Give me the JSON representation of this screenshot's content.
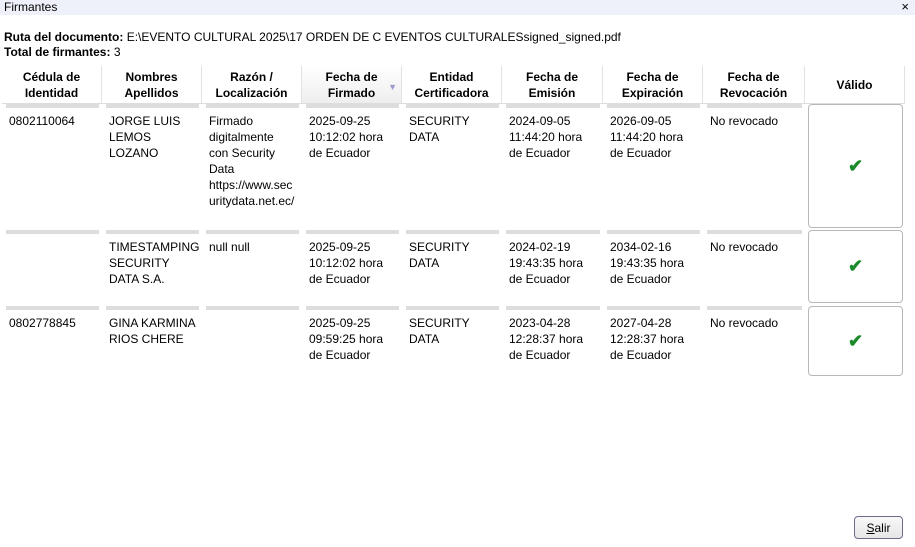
{
  "window": {
    "title": "Firmantes",
    "close": "×"
  },
  "info": {
    "path_label": "Ruta del documento:",
    "path": "E:\\EVENTO CULTURAL 2025\\17 ORDEN DE C EVENTOS CULTURALESsigned_signed.pdf",
    "total_label": "Total de firmantes:",
    "total": "3"
  },
  "columns": [
    {
      "line1": "Cédula de",
      "line2": "Identidad"
    },
    {
      "line1": "Nombres",
      "line2": "Apellidos"
    },
    {
      "line1": "Razón /",
      "line2": "Localización"
    },
    {
      "line1": "Fecha de",
      "line2": "Firmado",
      "sorted": "descending"
    },
    {
      "line1": "Entidad",
      "line2": "Certificadora"
    },
    {
      "line1": "Fecha de",
      "line2": "Emisión"
    },
    {
      "line1": "Fecha de",
      "line2": "Expiración"
    },
    {
      "line1": "Fecha de",
      "line2": "Revocación"
    },
    {
      "line1": "Válido",
      "line2": ""
    }
  ],
  "rows": [
    {
      "cedula": "0802110064",
      "nombres": "JORGE LUIS LEMOS LOZANO",
      "razon": "Firmado digitalmente con Security Data https://www.securitydata.net.ec/",
      "firmado": "2025-09-25 10:12:02 hora de Ecuador",
      "entidad": "SECURITY DATA",
      "emision": "2024-09-05 11:44:20 hora de Ecuador",
      "expiracion": "2026-09-05 11:44:20 hora de Ecuador",
      "revocacion": "No revocado",
      "valido": "✔"
    },
    {
      "cedula": "",
      "nombres": "TIMESTAMPING SECURITY DATA S.A.",
      "razon": "null null",
      "firmado": "2025-09-25 10:12:02 hora de Ecuador",
      "entidad": "SECURITY DATA",
      "emision": "2024-02-19 19:43:35 hora de Ecuador",
      "expiracion": "2034-02-16 19:43:35 hora de Ecuador",
      "revocacion": "No revocado",
      "valido": "✔"
    },
    {
      "cedula": "0802778845",
      "nombres": "GINA KARMINA RIOS CHERE",
      "razon": "",
      "firmado": "2025-09-25 09:59:25 hora de Ecuador",
      "entidad": "SECURITY DATA",
      "emision": "2023-04-28 12:28:37 hora de Ecuador",
      "expiracion": "2027-04-28 12:28:37 hora de Ecuador",
      "revocacion": "No revocado",
      "valido": "✔"
    }
  ],
  "buttons": {
    "exit": "Salir"
  },
  "colors": {
    "valid": "#1a8a2a",
    "titlebar": "#eef1fa"
  }
}
